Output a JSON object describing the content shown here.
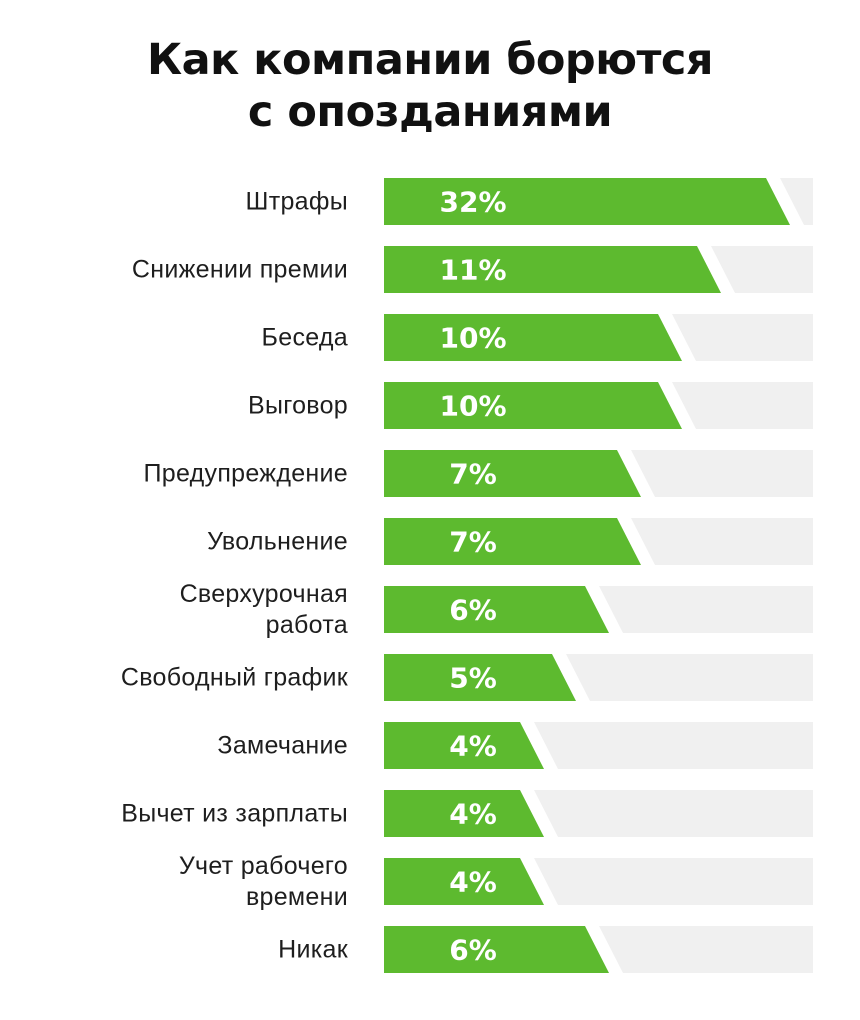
{
  "chart_data": {
    "type": "bar",
    "orientation": "horizontal",
    "title_lines": [
      "Как компании борются",
      "с опозданиями"
    ],
    "categories": [
      [
        "Штрафы"
      ],
      [
        "Снижении премии"
      ],
      [
        "Беседа"
      ],
      [
        "Выговор"
      ],
      [
        "Предупреждение"
      ],
      [
        "Увольнение"
      ],
      [
        "Сверхурочная",
        "работа"
      ],
      [
        "Свободный график"
      ],
      [
        "Замечание"
      ],
      [
        "Вычет из зарплаты"
      ],
      [
        "Учет рабочего",
        "времени"
      ],
      [
        "Никак"
      ]
    ],
    "values": [
      32,
      11,
      10,
      10,
      7,
      7,
      6,
      5,
      4,
      4,
      4,
      6
    ],
    "value_labels": [
      "32%",
      "11%",
      "10%",
      "10%",
      "7%",
      "7%",
      "6%",
      "5%",
      "4%",
      "4%",
      "4%",
      "6%"
    ],
    "unit": "%",
    "grid": false,
    "legend": "none",
    "colors": {
      "bar": "#5dba2f",
      "track": "#f0f0f0",
      "label": "#1e1e1e",
      "value_text": "#ffffff",
      "title": "#111111"
    }
  }
}
